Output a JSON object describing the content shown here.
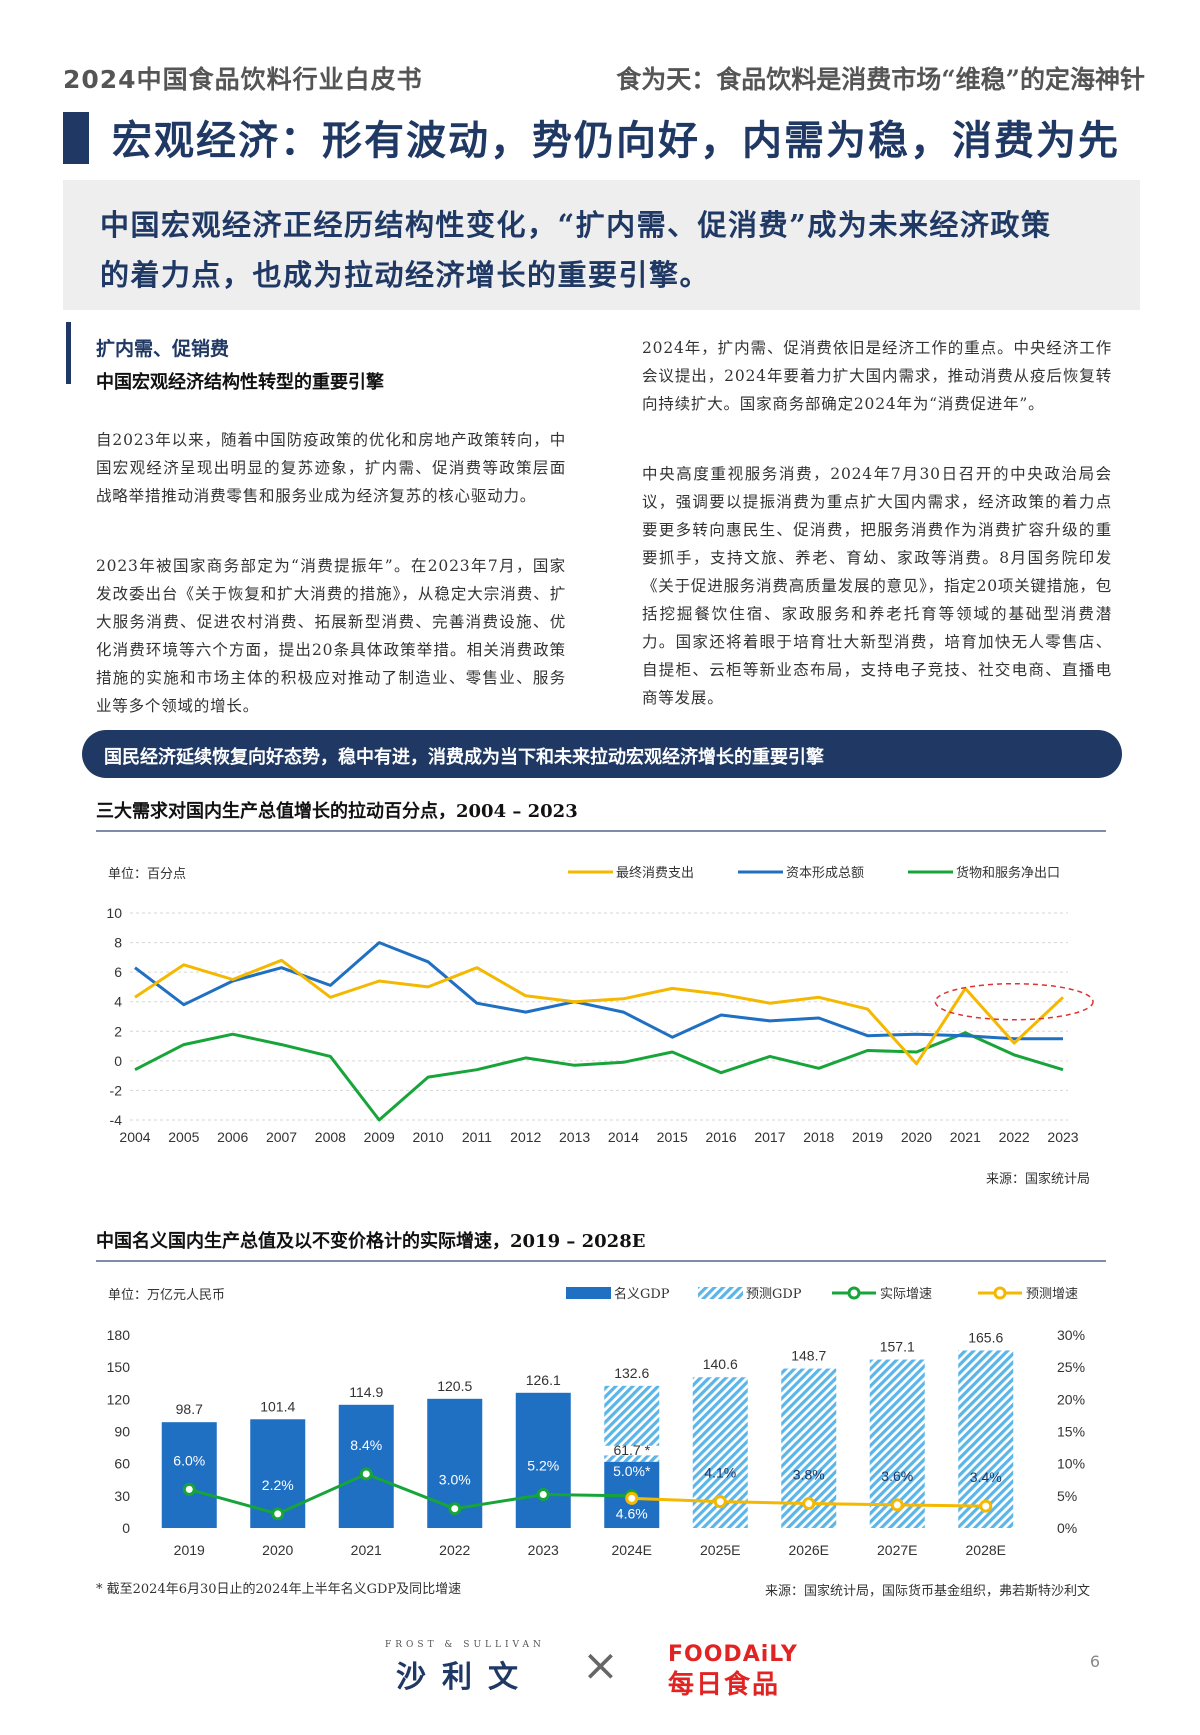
{
  "header": {
    "left": "2024中国食品饮料行业白皮书",
    "right": "食为天：食品饮料是消费市场“维稳”的定海神针"
  },
  "title": "宏观经济：形有波动，势仍向好，内需为稳，消费为先",
  "summary_line1": "中国宏观经济正经历结构性变化，“扩内需、促消费”成为未来经济政策",
  "summary_line2": "的着力点，也成为拉动经济增长的重要引擎。",
  "section": {
    "heading1": "扩内需、促销费",
    "heading2": "中国宏观经济结构性转型的重要引擎",
    "left_p1": "自2023年以来，随着中国防疫政策的优化和房地产政策转向，中国宏观经济呈现出明显的复苏迹象，扩内需、促消费等政策层面战略举措推动消费零售和服务业成为经济复苏的核心驱动力。",
    "left_p2": "2023年被国家商务部定为“消费提振年”。在2023年7月，国家发改委出台《关于恢复和扩大消费的措施》，从稳定大宗消费、扩大服务消费、促进农村消费、拓展新型消费、完善消费设施、优化消费环境等六个方面，提出20条具体政策举措。相关消费政策措施的实施和市场主体的积极应对推动了制造业、零售业、服务业等多个领域的增长。",
    "right_p1": "2024年，扩内需、促消费依旧是经济工作的重点。中央经济工作会议提出，2024年要着力扩大国内需求，推动消费从疫后恢复转向持续扩大。国家商务部确定2024年为“消费促进年”。",
    "right_p2": "中央高度重视服务消费，2024年7月30日召开的中央政治局会议，强调要以提振消费为重点扩大国内需求，经济政策的着力点要更多转向惠民生、促消费，把服务消费作为消费扩容升级的重要抓手，支持文旅、养老、育幼、家政等消费。8月国务院印发《关于促进服务消费高质量发展的意见》，指定20项关键措施，包括挖掘餐饮住宿、家政服务和养老托育等领域的基础型消费潜力。国家还将着眼于培育壮大新型消费，培育加快无人零售店、自提柜、云柜等新业态布局，支持电子竞技、社交电商、直播电商等发展。"
  },
  "banner": "国民经济延续恢复向好态势，稳中有进，消费成为当下和未来拉动宏观经济增长的重要引擎",
  "chart1": {
    "title": "三大需求对国内生产总值增长的拉动百分点，2004 – 2023",
    "unit": "单位：百分点",
    "source": "来源：国家统计局"
  },
  "chart2": {
    "title": "中国名义国内生产总值及以不变价格计的实际增速，2019 – 2028E",
    "unit": "单位：万亿元人民币",
    "source": "来源：国家统计局，国际货币基金组织，弗若斯特沙利文",
    "footnote": "* 截至2024年6月30日止的2024年上半年名义GDP及同比增速"
  },
  "chart_data": [
    {
      "type": "line",
      "x": [
        "2004",
        "2005",
        "2006",
        "2007",
        "2008",
        "2009",
        "2010",
        "2011",
        "2012",
        "2013",
        "2014",
        "2015",
        "2016",
        "2017",
        "2018",
        "2019",
        "2020",
        "2021",
        "2022",
        "2023"
      ],
      "ylim": [
        -4,
        10
      ],
      "yticks": [
        "10",
        "8",
        "6",
        "4",
        "2",
        "0",
        "-2",
        "-4"
      ],
      "series": [
        {
          "name": "最终消费支出",
          "color": "#f5b800",
          "values": [
            4.3,
            6.5,
            5.5,
            6.8,
            4.3,
            5.4,
            5.0,
            6.3,
            4.4,
            4.0,
            4.2,
            4.9,
            4.5,
            3.9,
            4.3,
            3.5,
            -0.2,
            4.9,
            1.2,
            4.3
          ]
        },
        {
          "name": "资本形成总额",
          "color": "#1f6fc2",
          "values": [
            6.3,
            3.8,
            5.4,
            6.3,
            5.1,
            8.0,
            6.7,
            3.9,
            3.3,
            4.0,
            3.3,
            1.6,
            3.1,
            2.7,
            2.9,
            1.7,
            1.8,
            1.7,
            1.5,
            1.5
          ]
        },
        {
          "name": "货物和服务净出口",
          "color": "#17a53a",
          "values": [
            -0.6,
            1.1,
            1.8,
            1.1,
            0.3,
            -4.0,
            -1.1,
            -0.6,
            0.2,
            -0.3,
            -0.1,
            0.6,
            -0.8,
            0.3,
            -0.5,
            0.7,
            0.6,
            1.9,
            0.4,
            -0.6
          ]
        }
      ],
      "highlight_years": [
        "2021",
        "2022",
        "2023"
      ]
    },
    {
      "type": "bar",
      "categories": [
        "2019",
        "2020",
        "2021",
        "2022",
        "2023",
        "2024E",
        "2025E",
        "2026E",
        "2027E",
        "2028E"
      ],
      "ylim": [
        0,
        180
      ],
      "yticks": [
        "180",
        "150",
        "120",
        "90",
        "60",
        "30",
        "0"
      ],
      "y2ticks": [
        "30%",
        "25%",
        "20%",
        "15%",
        "10%",
        "5%",
        "0%"
      ],
      "y2lim": [
        0,
        30
      ],
      "legend": [
        "名义GDP",
        "预测GDP",
        "实际增速",
        "预测增速"
      ],
      "colors": {
        "actual": "#1f6fc2",
        "forecast": "#5bb5e8",
        "growth": "#17a53a",
        "forecast_growth": "#f5b800"
      },
      "gdp_values": [
        98.7,
        101.4,
        114.9,
        120.5,
        126.1,
        132.6,
        140.6,
        148.7,
        157.1,
        165.6
      ],
      "gdp_labels": [
        "98.7",
        "101.4",
        "114.9",
        "120.5",
        "126.1",
        "132.6",
        "140.6",
        "148.7",
        "157.1",
        "165.6"
      ],
      "h1_2024_value": 61.7,
      "h1_2024_label": "61.7 *",
      "growth_values": [
        6.0,
        2.2,
        8.4,
        3.0,
        5.2,
        5.0,
        4.1,
        3.8,
        3.6,
        3.4
      ],
      "growth_labels": [
        "6.0%",
        "2.2%",
        "8.4%",
        "3.0%",
        "5.2%",
        "5.0%*",
        "4.1%",
        "3.8%",
        "3.6%",
        "3.4%"
      ],
      "forecast_2024_growth": 4.6,
      "forecast_2024_growth_label": "4.6%"
    }
  ],
  "footer": {
    "frost_top": "FROST & SULLIVAN",
    "frost_main": "沙利文",
    "cross": "×",
    "foodaily_top": "FOODAiLY",
    "foodaily_main": "每日食品",
    "page": "6"
  }
}
